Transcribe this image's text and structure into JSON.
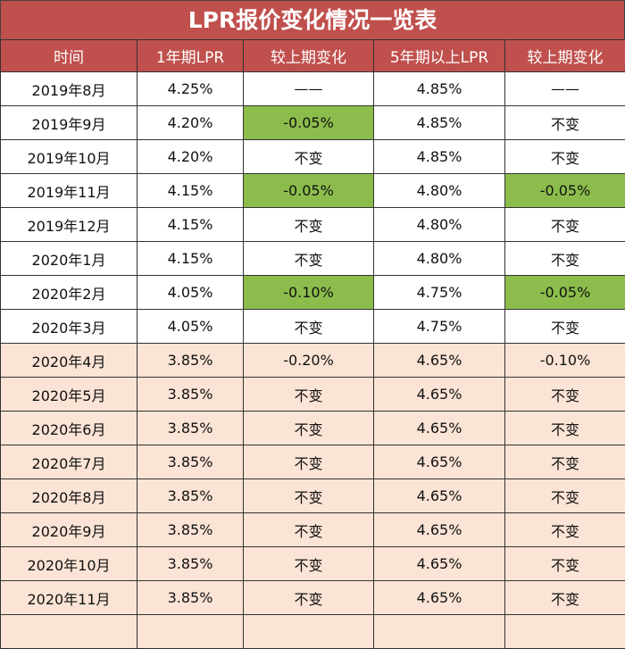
{
  "title": "LPR报价变化情况一览表",
  "colors": {
    "header": "#c0504d",
    "highlight_decrease": "#8cbd4c",
    "shaded_rows": "#fbe4d5"
  },
  "chart_data": {
    "type": "table",
    "title": "LPR报价变化情况一览表",
    "columns": [
      "时间",
      "1年期LPR",
      "较上期变化",
      "5年期以上LPR",
      "较上期变化"
    ],
    "rows": [
      [
        "2019年8月",
        "4.25%",
        "——",
        "4.85%",
        "——"
      ],
      [
        "2019年9月",
        "4.20%",
        "-0.05%",
        "4.85%",
        "不变"
      ],
      [
        "2019年10月",
        "4.20%",
        "不变",
        "4.85%",
        "不变"
      ],
      [
        "2019年11月",
        "4.15%",
        "-0.05%",
        "4.80%",
        "-0.05%"
      ],
      [
        "2019年12月",
        "4.15%",
        "不变",
        "4.80%",
        "不变"
      ],
      [
        "2020年1月",
        "4.15%",
        "不变",
        "4.80%",
        "不变"
      ],
      [
        "2020年2月",
        "4.05%",
        "-0.10%",
        "4.75%",
        "-0.05%"
      ],
      [
        "2020年3月",
        "4.05%",
        "不变",
        "4.75%",
        "不变"
      ],
      [
        "2020年4月",
        "3.85%",
        "-0.20%",
        "4.65%",
        "-0.10%"
      ],
      [
        "2020年5月",
        "3.85%",
        "不变",
        "4.65%",
        "不变"
      ],
      [
        "2020年6月",
        "3.85%",
        "不变",
        "4.65%",
        "不变"
      ],
      [
        "2020年7月",
        "3.85%",
        "不变",
        "4.65%",
        "不变"
      ],
      [
        "2020年8月",
        "3.85%",
        "不变",
        "4.65%",
        "不变"
      ],
      [
        "2020年9月",
        "3.85%",
        "不变",
        "4.65%",
        "不变"
      ],
      [
        "2020年10月",
        "3.85%",
        "不变",
        "4.65%",
        "不变"
      ],
      [
        "2020年11月",
        "3.85%",
        "不变",
        "4.65%",
        "不变"
      ]
    ]
  }
}
